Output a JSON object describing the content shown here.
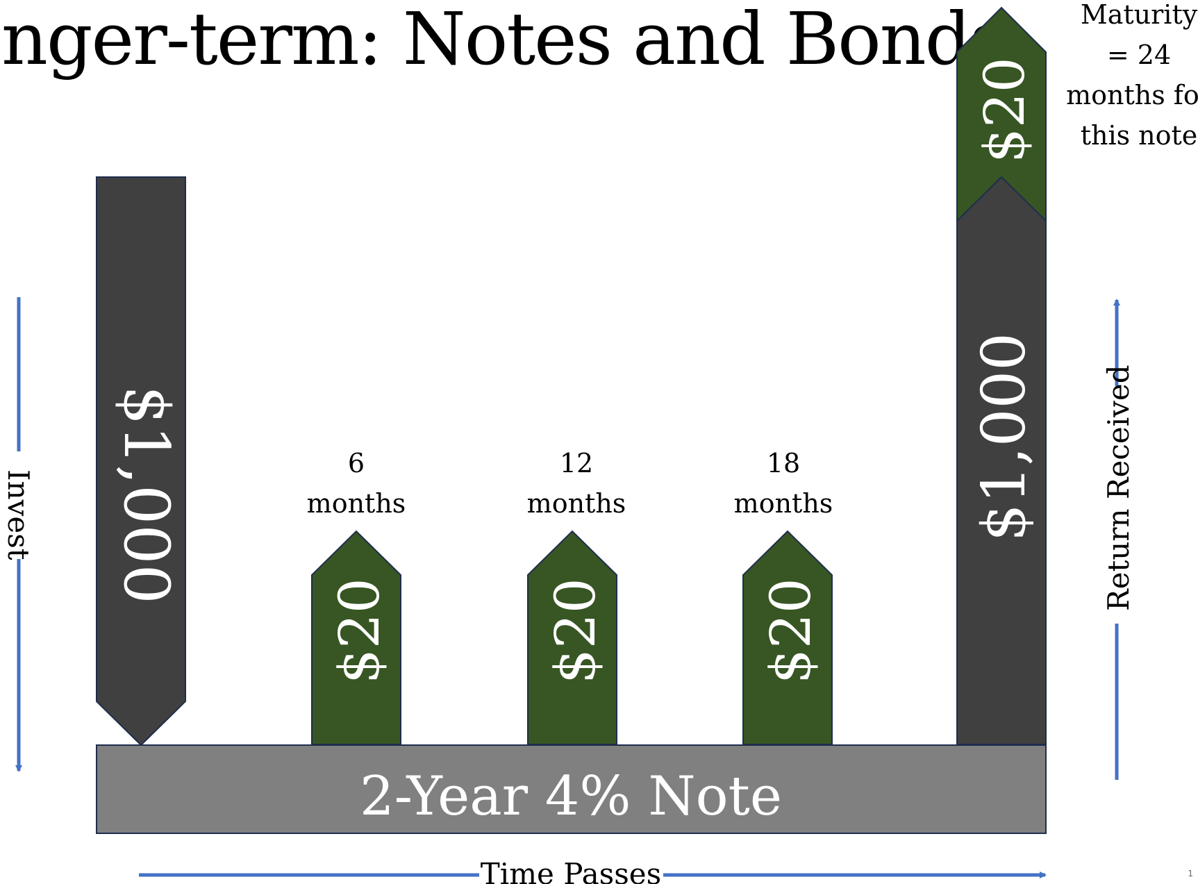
{
  "title": "nger-term: Notes and Bonds",
  "note_label": "2-Year 4% Note",
  "invest": {
    "amount": "$1,000",
    "axis_label": "Invest"
  },
  "coupons": [
    {
      "period_number": "6",
      "period_unit": "months",
      "amount": "$20"
    },
    {
      "period_number": "12",
      "period_unit": "months",
      "amount": "$20"
    },
    {
      "period_number": "18",
      "period_unit": "months",
      "amount": "$20"
    }
  ],
  "maturity": {
    "coupon_amount": "$20",
    "principal_amount": "$1,000",
    "caption_lines": [
      "Maturity",
      "= 24",
      "months for",
      "this note"
    ]
  },
  "axes": {
    "time_label": "Time Passes",
    "return_label": "Return Received"
  },
  "page_number": "1",
  "colors": {
    "dark_gray": "#404040",
    "green": "#375623",
    "note_gray": "#808080",
    "outline": "#1f2d4d",
    "arrow_blue": "#4472c4"
  }
}
